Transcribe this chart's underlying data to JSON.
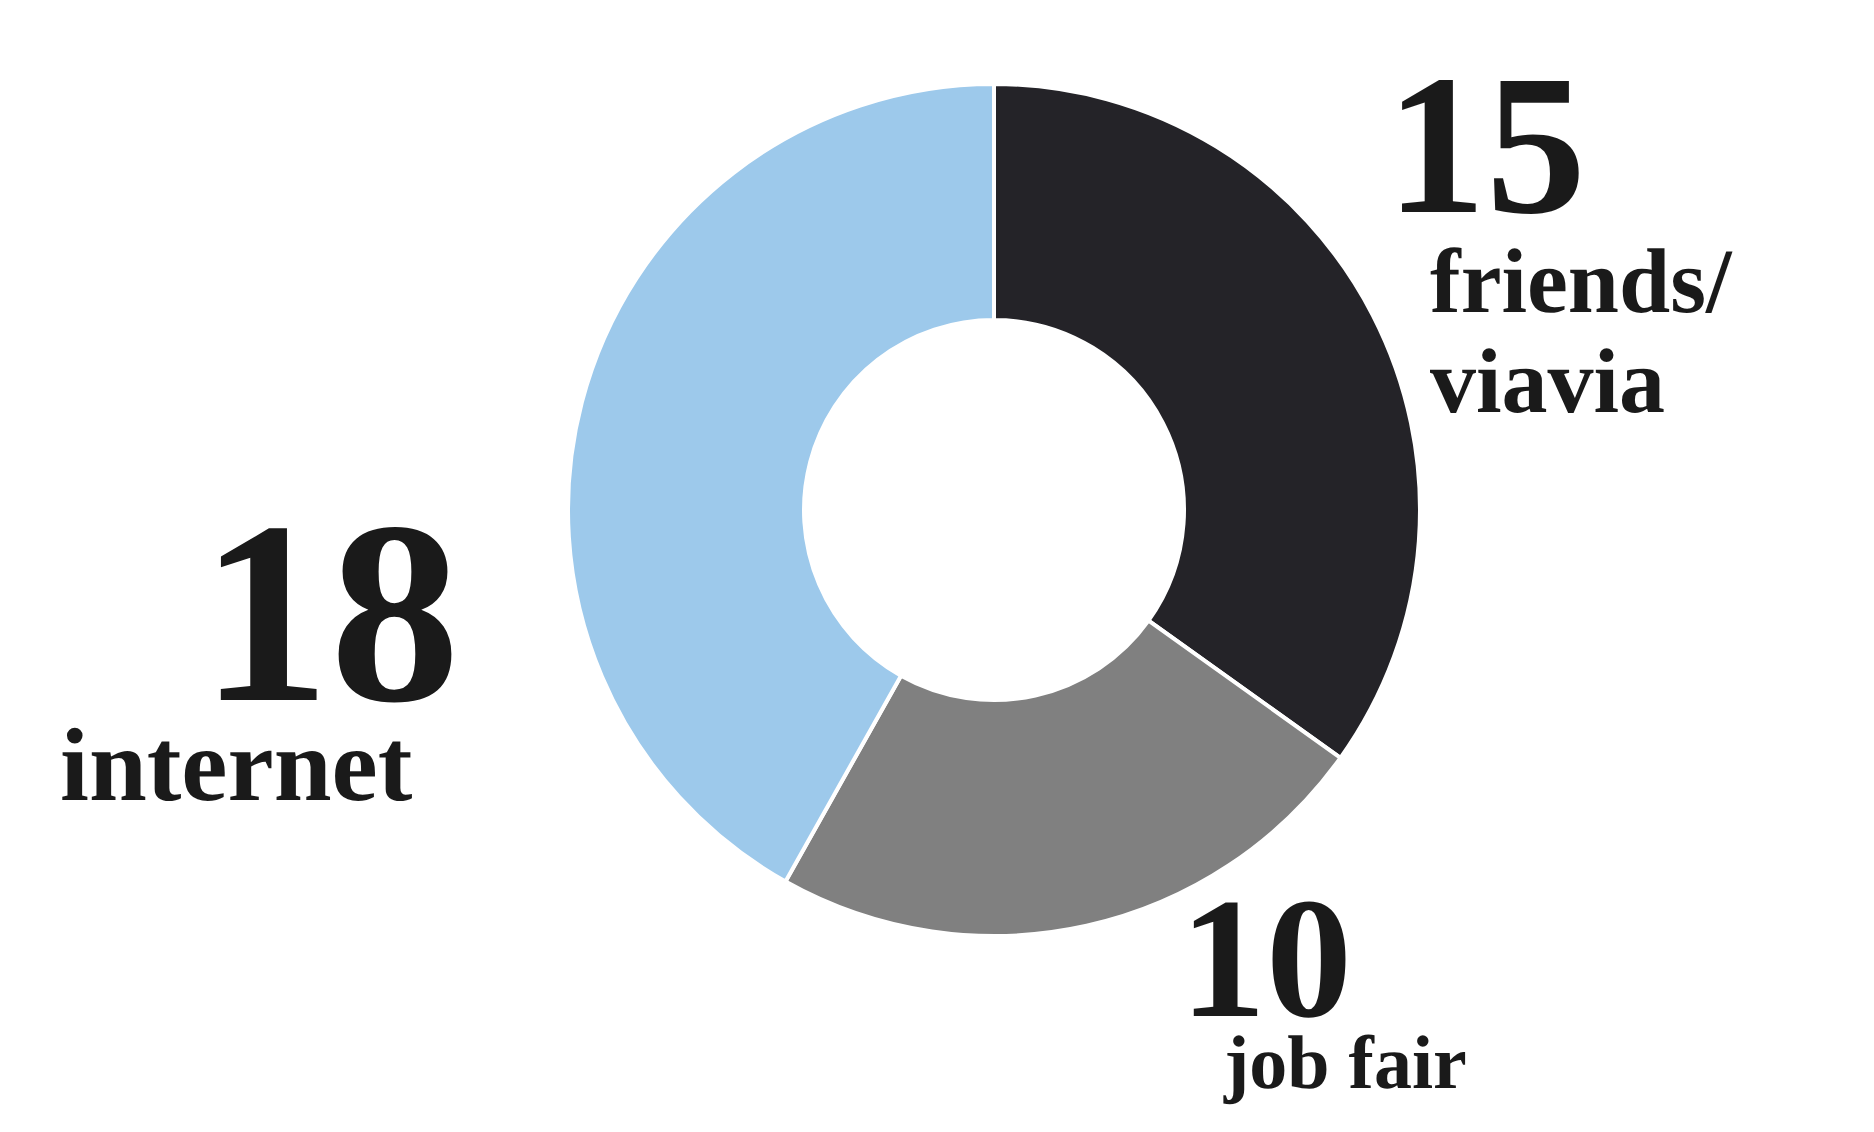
{
  "chart_data": {
    "type": "donut",
    "categories": [
      "friends/\nviavia",
      "job fair",
      "internet"
    ],
    "values": [
      15,
      10,
      18
    ],
    "colors": [
      "#242328",
      "#808080",
      "#9dc9eb"
    ],
    "data_labels": true,
    "legend": false
  }
}
